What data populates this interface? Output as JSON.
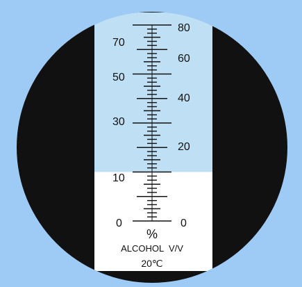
{
  "scale": {
    "left_labels": [
      "70",
      "50",
      "30",
      "10",
      "0"
    ],
    "right_labels": [
      "80",
      "60",
      "40",
      "20",
      "0"
    ],
    "reading_fraction": 0.25
  },
  "caption": {
    "unit": "%",
    "measure": "ALCOHOL  V/V",
    "temperature": "20℃"
  },
  "colors": {
    "background": "#9ecbf5",
    "eyepiece": "#111111",
    "upper_field": "#bfe0f4",
    "lower_field": "#ffffff",
    "ink": "#111111"
  }
}
